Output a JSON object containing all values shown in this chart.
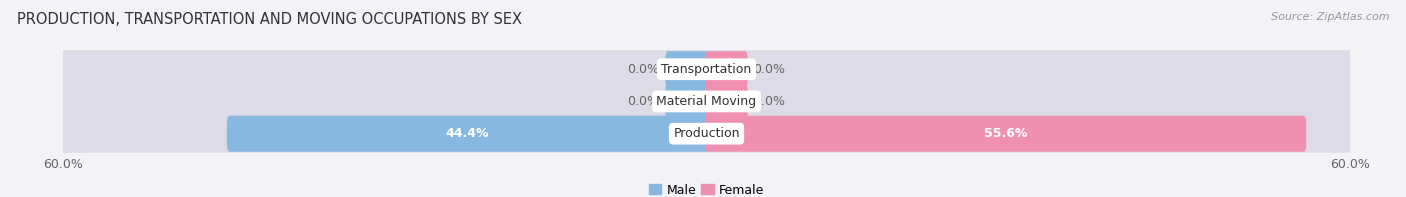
{
  "title": "PRODUCTION, TRANSPORTATION AND MOVING OCCUPATIONS BY SEX",
  "source": "Source: ZipAtlas.com",
  "categories": [
    "Transportation",
    "Material Moving",
    "Production"
  ],
  "male_values": [
    0.0,
    0.0,
    44.4
  ],
  "female_values": [
    0.0,
    0.0,
    55.6
  ],
  "xlim": 60.0,
  "male_color": "#88b8e0",
  "female_color": "#f090b0",
  "bg_color": "#f2f2f7",
  "bar_bg_color_left": "#dcdce8",
  "bar_bg_color_right": "#dcdce8",
  "label_color": "#666666",
  "title_color": "#333333",
  "bar_height": 0.62,
  "min_stub": 3.5,
  "legend_male": "Male",
  "legend_female": "Female",
  "bar_gap": 0.18
}
